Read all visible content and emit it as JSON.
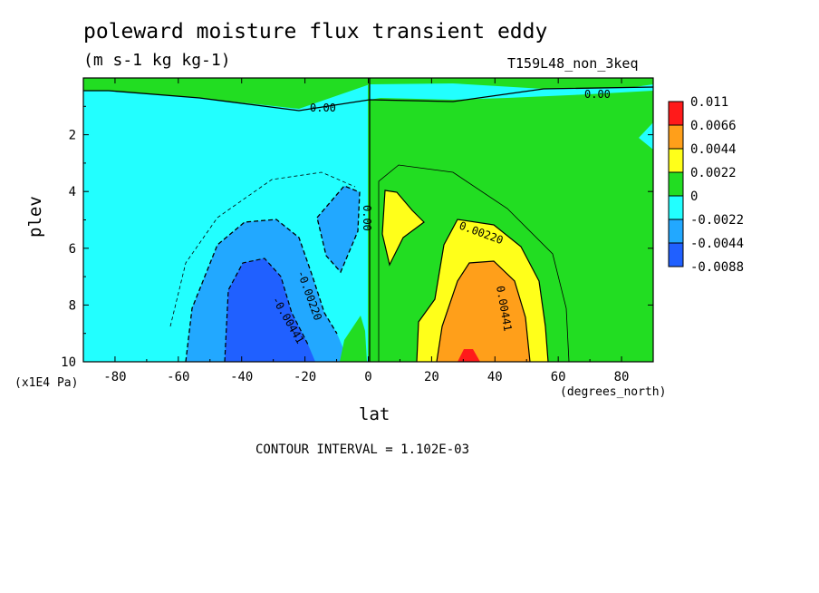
{
  "chart_data": {
    "type": "heatmap",
    "title": "poleward moisture flux transient eddy",
    "subtitle": "(m s-1 kg kg-1)",
    "run_name": "T159L48_non_3keq",
    "xlabel": "lat",
    "ylabel": "plev",
    "x_units": "(degrees_north)",
    "y_units": "(x1E4 Pa)",
    "xlim": [
      -90,
      90
    ],
    "ylim": [
      10,
      0
    ],
    "x_ticks": [
      "-80",
      "-60",
      "-40",
      "-20",
      "0",
      "20",
      "40",
      "60",
      "80"
    ],
    "y_ticks": [
      "2",
      "4",
      "6",
      "8",
      "10"
    ],
    "colorbar": {
      "labels": [
        "0.011",
        "0.0066",
        "0.0044",
        "0.0022",
        "0",
        "-0.0022",
        "-0.0044",
        "-0.0088"
      ],
      "colors": [
        "#ff1a1a",
        "#ff9f1a",
        "#ffff1a",
        "#22dd22",
        "#22ffff",
        "#22a8ff",
        "#2060ff"
      ]
    },
    "contour_labels": [
      "0.00",
      "0.00",
      "0.00",
      "0.00220",
      "0.00441",
      "-0.00220",
      "-0.00441"
    ],
    "contour_interval": "CONTOUR INTERVAL = 1.102E-03"
  }
}
